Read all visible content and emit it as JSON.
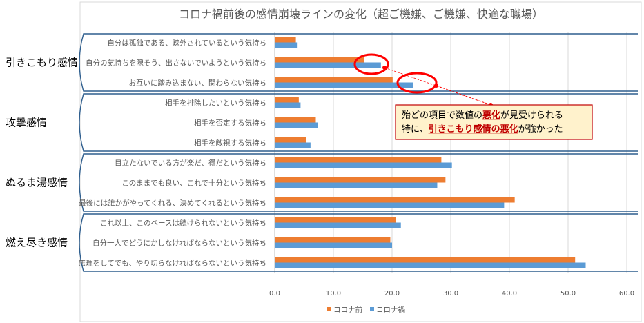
{
  "chart_data": {
    "type": "bar",
    "orientation": "horizontal",
    "title": "コロナ禍前後の感情崩壊ラインの変化（超ご機嫌、ご機嫌、快適な職場）",
    "categories": [
      "自分は孤独である、疎外されているという気持ち",
      "自分の気持ちを隠そう、出さないでいようという気持ち",
      "お互いに踏み込まない、関わらない気持ち",
      "相手を排除したいという気持ち",
      "相手を否定する気持ち",
      "相手を敵視する気持ち",
      "目立たないでいる方が楽だ、得だという気持ち",
      "このままでも良い、これで十分という気持ち",
      "最後には誰かがやってくれる、決めてくれるという気持ち",
      "これ以上、このペースは続けられないという気持ち",
      "自分一人でどうにかしなければならないという気持ち",
      "無理をしてでも、やり切らなければならないという気持ち"
    ],
    "series": [
      {
        "name": "コロナ前",
        "color": "#ed7d31",
        "values": [
          3.6,
          15.2,
          20.1,
          4.1,
          7.0,
          5.4,
          28.4,
          29.1,
          40.9,
          20.6,
          19.7,
          51.2
        ]
      },
      {
        "name": "コロナ禍",
        "color": "#5b9bd5",
        "values": [
          3.9,
          18.1,
          23.6,
          4.4,
          7.4,
          6.1,
          30.2,
          27.7,
          39.1,
          21.5,
          20.0,
          53.0
        ]
      }
    ],
    "groups": [
      {
        "label": "引きこもり感情",
        "start": 0,
        "end": 2
      },
      {
        "label": "攻撃感情",
        "start": 3,
        "end": 5
      },
      {
        "label": "ぬるま湯感情",
        "start": 6,
        "end": 8
      },
      {
        "label": "燃え尽き感情",
        "start": 9,
        "end": 11
      }
    ],
    "xlim": [
      0,
      60
    ],
    "xticks": [
      "0.0",
      "10.0",
      "20.0",
      "30.0",
      "40.0",
      "50.0",
      "60.0"
    ],
    "grid": true,
    "legend_position": "bottom",
    "annotation": {
      "line1_pre": "殆どの項目で数値の",
      "line1_hl": "悪化",
      "line1_post": "が見受けられる",
      "line2_pre": "特に、",
      "line2_hl": "引きこもり感情の悪化",
      "line2_post": "が強かった"
    }
  }
}
